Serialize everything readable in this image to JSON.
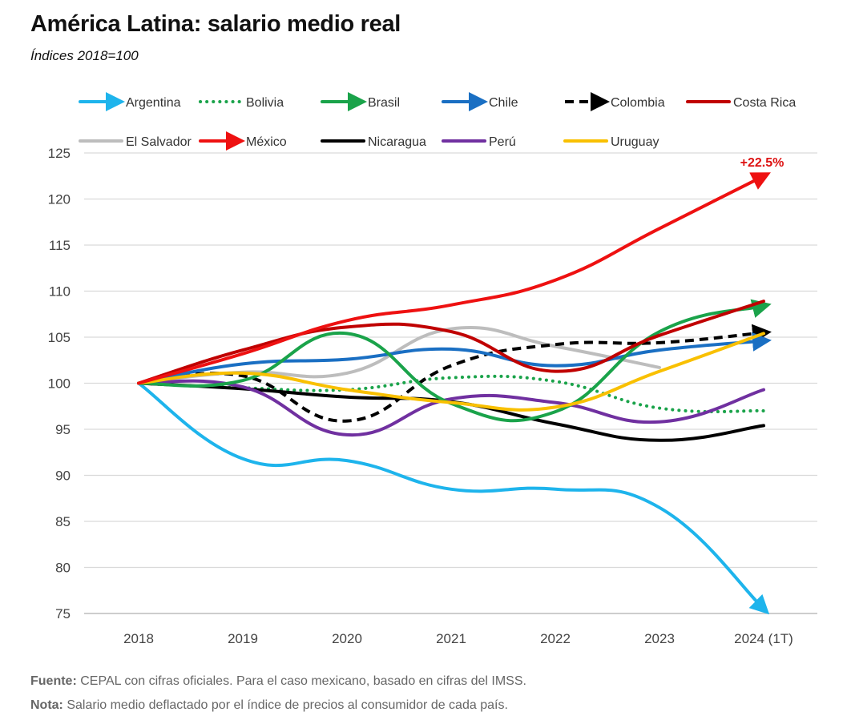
{
  "header": {
    "title": "América Latina: salario medio real",
    "subtitle": "Índices 2018=100"
  },
  "footer": {
    "source_label": "Fuente:",
    "source_text": " CEPAL con cifras oficiales. Para el caso mexicano, basado en cifras del IMSS.",
    "note_label": "Nota:",
    "note_text": " Salario medio deflactado por el índice de precios al consumidor de cada país."
  },
  "chart_data": {
    "type": "line",
    "title": "América Latina: salario medio real",
    "subtitle": "Índices 2018=100",
    "categories": [
      "2018",
      "2019",
      "2020",
      "2021",
      "2022",
      "2023",
      "2024 (1T)"
    ],
    "ylim": [
      75,
      125
    ],
    "yticks": [
      75,
      80,
      85,
      90,
      95,
      100,
      105,
      110,
      115,
      120,
      125
    ],
    "grid": true,
    "legend_position": "top",
    "annotation": {
      "text": "+22.5%",
      "series": "México",
      "color": "#dd1111"
    },
    "series": [
      {
        "name": "Argentina",
        "color": "#1eb4ec",
        "style": "solid",
        "arrow": true,
        "values": [
          100,
          91.8,
          91.6,
          88.5,
          88.5,
          86.5,
          75.5
        ]
      },
      {
        "name": "Bolivia",
        "color": "#1aa34a",
        "style": "dotted",
        "arrow": false,
        "values": [
          100,
          99.5,
          99.3,
          100.6,
          100.2,
          97.3,
          97.0
        ]
      },
      {
        "name": "Brasil",
        "color": "#1aa34a",
        "style": "solid",
        "arrow": true,
        "values": [
          100,
          100.3,
          105.4,
          97.8,
          96.9,
          105.6,
          108.4
        ]
      },
      {
        "name": "Chile",
        "color": "#1a6fc3",
        "style": "solid",
        "arrow": true,
        "values": [
          100,
          102.1,
          102.6,
          103.7,
          101.9,
          103.6,
          104.6
        ]
      },
      {
        "name": "Colombia",
        "color": "#000000",
        "style": "dashed",
        "arrow": true,
        "values": [
          100,
          100.8,
          95.9,
          101.9,
          104.2,
          104.4,
          105.5
        ]
      },
      {
        "name": "Costa Rica",
        "color": "#c00000",
        "style": "solid",
        "arrow": false,
        "values": [
          100,
          103.6,
          106.1,
          105.6,
          101.3,
          105.2,
          108.9
        ]
      },
      {
        "name": "El Salvador",
        "color": "#bdbdbd",
        "style": "solid",
        "arrow": false,
        "values": [
          100,
          101.2,
          101.1,
          105.9,
          104.0,
          101.7,
          null
        ]
      },
      {
        "name": "México",
        "color": "#ee1111",
        "style": "solid",
        "arrow": true,
        "values": [
          100,
          103.2,
          106.8,
          108.5,
          111.2,
          116.8,
          122.5
        ]
      },
      {
        "name": "Nicaragua",
        "color": "#000000",
        "style": "solid",
        "arrow": false,
        "values": [
          100,
          99.4,
          98.5,
          98.0,
          95.6,
          93.8,
          95.4
        ]
      },
      {
        "name": "Perú",
        "color": "#7030a0",
        "style": "solid",
        "arrow": false,
        "values": [
          100,
          99.6,
          94.4,
          98.3,
          97.9,
          95.8,
          99.3
        ]
      },
      {
        "name": "Uruguay",
        "color": "#f9c000",
        "style": "solid",
        "arrow": false,
        "values": [
          100,
          101.1,
          99.3,
          97.9,
          97.4,
          101.3,
          105.4
        ]
      }
    ]
  }
}
